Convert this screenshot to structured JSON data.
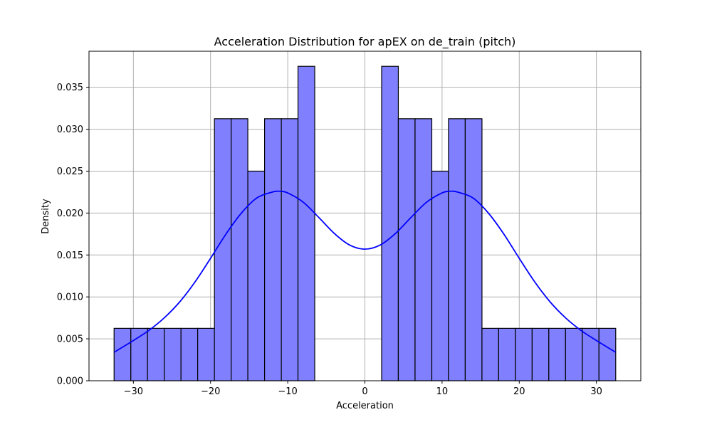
{
  "chart_data": {
    "type": "bar",
    "title": "Acceleration Distribution for apEX on de_train (pitch)",
    "xlabel": "Acceleration",
    "ylabel": "Density",
    "xlim": [
      -35.75,
      35.75
    ],
    "ylim": [
      0,
      0.0393
    ],
    "xticks": [
      -30,
      -20,
      -10,
      0,
      10,
      20,
      30
    ],
    "xtick_labels": [
      "−30",
      "−20",
      "−10",
      "0",
      "10",
      "20",
      "30"
    ],
    "yticks": [
      0,
      0.005,
      0.01,
      0.015,
      0.02,
      0.025,
      0.03,
      0.035
    ],
    "ytick_labels": [
      "0.000",
      "0.005",
      "0.010",
      "0.015",
      "0.020",
      "0.025",
      "0.030",
      "0.035"
    ],
    "grid": true,
    "bin_edges": [
      -32.5,
      -30.33,
      -28.17,
      -26.0,
      -23.83,
      -21.67,
      -19.5,
      -17.33,
      -15.17,
      -13.0,
      -10.83,
      -8.67,
      -6.5,
      -4.33,
      -2.17,
      0.0,
      2.17,
      4.33,
      6.5,
      8.67,
      10.83,
      13.0,
      15.17,
      17.33,
      19.5,
      21.67,
      23.83,
      26.0,
      28.17,
      30.33,
      32.5
    ],
    "values": [
      0.00625,
      0.00625,
      0.00625,
      0.00625,
      0.00625,
      0.00625,
      0.03125,
      0.03125,
      0.025,
      0.03125,
      0.03125,
      0.0375,
      0,
      0,
      0,
      0,
      0.0375,
      0.03125,
      0.03125,
      0.025,
      0.03125,
      0.03125,
      0.00625,
      0.00625,
      0.00625,
      0.00625,
      0.00625,
      0.00625,
      0.00625,
      0.00625
    ],
    "kde": {
      "x": [
        -32.5,
        -30,
        -28,
        -26,
        -24,
        -22,
        -20,
        -18,
        -16,
        -14,
        -12,
        -11,
        -10,
        -8,
        -6,
        -4,
        -2,
        0,
        2,
        4,
        6,
        8,
        10,
        11,
        12,
        14,
        16,
        18,
        20,
        22,
        24,
        26,
        28,
        30,
        32.5
      ],
      "y": [
        0.0034,
        0.0048,
        0.006,
        0.0075,
        0.0094,
        0.0118,
        0.0146,
        0.0175,
        0.02,
        0.0218,
        0.0225,
        0.0226,
        0.0224,
        0.0213,
        0.0195,
        0.0176,
        0.0162,
        0.0157,
        0.0162,
        0.0176,
        0.0195,
        0.0213,
        0.0224,
        0.0226,
        0.0225,
        0.0218,
        0.02,
        0.0175,
        0.0146,
        0.0118,
        0.0094,
        0.0075,
        0.006,
        0.0048,
        0.0034
      ]
    },
    "colors": {
      "bar_fill": "#8080ff",
      "bar_edge": "#000000",
      "kde_line": "#0000ff",
      "grid": "#b0b0b0"
    }
  }
}
